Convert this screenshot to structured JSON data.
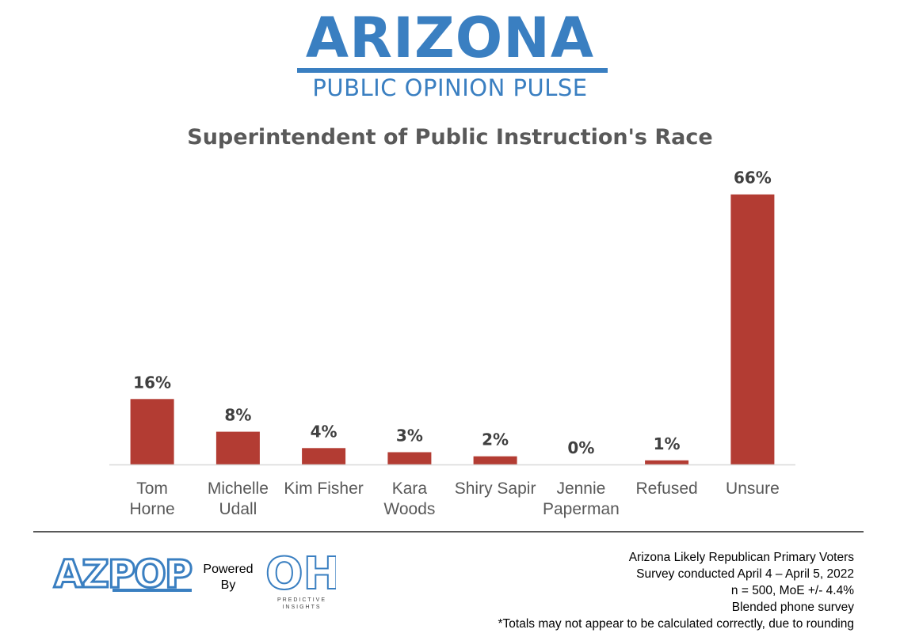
{
  "header": {
    "brand_title": "ARIZONA",
    "brand_subtitle": "PUBLIC OPINION PULSE"
  },
  "chart_data": {
    "type": "bar",
    "title": "Superintendent of Public Instruction's Race",
    "categories": [
      [
        "Tom",
        "Horne"
      ],
      [
        "Michelle",
        "Udall"
      ],
      [
        "Kim Fisher"
      ],
      [
        "Kara",
        "Woods"
      ],
      [
        "Shiry Sapir"
      ],
      [
        "Jennie",
        "Paperman"
      ],
      [
        "Refused"
      ],
      [
        "Unsure"
      ]
    ],
    "values": [
      16,
      8,
      4,
      3,
      2,
      0,
      1,
      66
    ],
    "value_labels": [
      "16%",
      "8%",
      "4%",
      "3%",
      "2%",
      "0%",
      "1%",
      "66%"
    ],
    "ylim": [
      0,
      70
    ],
    "grid": false,
    "bar_color": "#b33c33"
  },
  "footer": {
    "logo_text": "AZPOP",
    "powered_by": [
      "Powered",
      "By"
    ],
    "partner_logo": "OH",
    "partner_caption": "PREDICTIVE INSIGHTS",
    "notes": [
      "Arizona Likely Republican Primary Voters",
      "Survey conducted April 4 – April 5, 2022",
      "n = 500, MoE +/- 4.4%",
      "Blended phone survey",
      "*Totals may not appear to be calculated correctly, due to rounding"
    ]
  },
  "colors": {
    "brand_blue": "#3a7fc1",
    "bar_red": "#b33c33",
    "title_gray": "#595959"
  }
}
